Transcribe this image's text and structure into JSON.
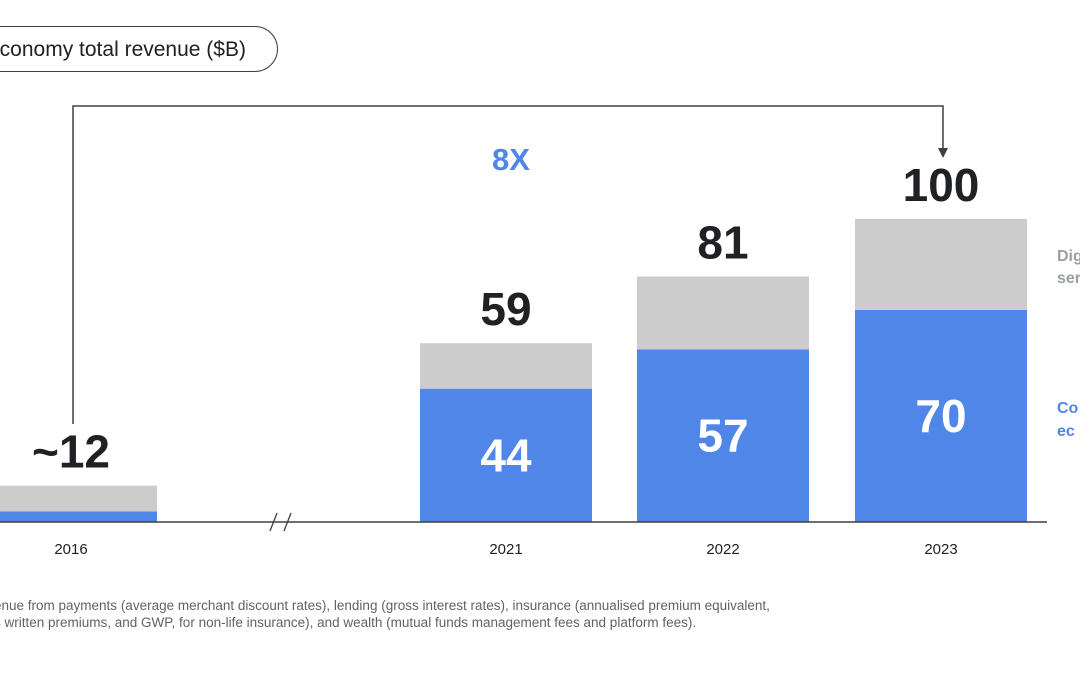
{
  "title": "economy total revenue ($B)",
  "multiplier_label": "8X",
  "legend": {
    "top_label_line1": "Dig",
    "top_label_line2": "ser",
    "bottom_label_line1": "Co",
    "bottom_label_line2": "ec"
  },
  "footnote": {
    "line1": "enue from payments (average merchant discount rates), lending (gross interest rates), insurance (annualised premium equivalent,",
    "line2": "s written premiums, and GWP, for non-life insurance), and wealth (mutual funds management fees and platform fees)."
  },
  "colors": {
    "blue": "#4f86e8",
    "grey": "#cccccc",
    "text": "#202124",
    "axis": "#3c4043"
  },
  "chart_data": {
    "type": "bar",
    "stacked": true,
    "categories": [
      "2016",
      "2021",
      "2022",
      "2023"
    ],
    "series": [
      {
        "values": [
          3.5,
          44,
          57,
          70
        ]
      },
      {
        "values": [
          8.5,
          15,
          24,
          30
        ]
      }
    ],
    "total_labels": [
      "~12",
      "59",
      "81",
      "100"
    ],
    "segment_labels": [
      "",
      "44",
      "57",
      "70"
    ],
    "axis_break_between": [
      "2016",
      "2021"
    ],
    "ylim": [
      0,
      100
    ]
  }
}
